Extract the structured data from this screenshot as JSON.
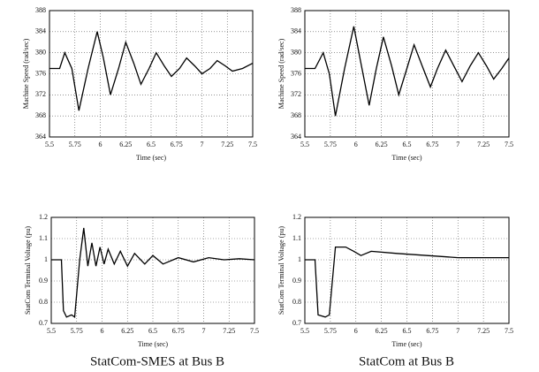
{
  "chart_data": [
    {
      "type": "line",
      "xlabel": "Time (sec)",
      "ylabel": "Machine Speed (rad/sec)",
      "color": "#000000",
      "grid": true,
      "x": [
        5.5,
        5.6,
        5.65,
        5.72,
        5.79,
        5.88,
        5.97,
        6.03,
        6.1,
        6.18,
        6.25,
        6.33,
        6.4,
        6.48,
        6.55,
        6.63,
        6.7,
        6.78,
        6.85,
        6.93,
        7.0,
        7.08,
        7.15,
        7.23,
        7.3,
        7.4,
        7.5
      ],
      "values": [
        377,
        377,
        380,
        377,
        369,
        377,
        384,
        379,
        372,
        377,
        382,
        378,
        374,
        377,
        380,
        377.5,
        375.5,
        377,
        379,
        377.5,
        376,
        377,
        378.5,
        377.5,
        376.5,
        377,
        378
      ],
      "xlim": [
        5.5,
        7.5
      ],
      "xticks": [
        5.5,
        5.75,
        6,
        6.25,
        6.5,
        6.75,
        7,
        7.25,
        7.5
      ],
      "ylim": [
        364,
        388
      ],
      "yticks": [
        364,
        368,
        372,
        376,
        380,
        384,
        388
      ]
    },
    {
      "type": "line",
      "xlabel": "Time (sec)",
      "ylabel": "Machine Speed (rad/sec)",
      "color": "#000000",
      "grid": true,
      "x": [
        5.5,
        5.6,
        5.68,
        5.74,
        5.8,
        5.89,
        5.98,
        6.05,
        6.13,
        6.2,
        6.27,
        6.35,
        6.42,
        6.5,
        6.57,
        6.65,
        6.73,
        6.8,
        6.88,
        6.96,
        7.04,
        7.12,
        7.2,
        7.28,
        7.35,
        7.43,
        7.5
      ],
      "values": [
        377,
        377,
        380,
        376,
        368,
        377,
        385,
        378,
        370,
        377,
        383,
        377.5,
        372,
        377,
        381.5,
        377.5,
        373.5,
        377,
        380.5,
        377.5,
        374.5,
        377.5,
        380,
        377.5,
        375,
        377,
        379
      ],
      "xlim": [
        5.5,
        7.5
      ],
      "xticks": [
        5.5,
        5.75,
        6,
        6.25,
        6.5,
        6.75,
        7,
        7.25,
        7.5
      ],
      "ylim": [
        364,
        388
      ],
      "yticks": [
        364,
        368,
        372,
        376,
        380,
        384,
        388
      ]
    },
    {
      "type": "line",
      "xlabel": "Time (sec)",
      "ylabel": "StatCom Terminal Voltage (pu)",
      "color": "#000000",
      "grid": true,
      "x": [
        5.5,
        5.6,
        5.62,
        5.65,
        5.7,
        5.73,
        5.78,
        5.82,
        5.86,
        5.9,
        5.94,
        5.98,
        6.02,
        6.06,
        6.12,
        6.18,
        6.25,
        6.32,
        6.42,
        6.5,
        6.6,
        6.75,
        6.9,
        7.05,
        7.2,
        7.35,
        7.5
      ],
      "values": [
        1.0,
        1.0,
        0.76,
        0.73,
        0.74,
        0.73,
        1.0,
        1.15,
        0.97,
        1.08,
        0.97,
        1.06,
        0.98,
        1.05,
        0.98,
        1.04,
        0.97,
        1.03,
        0.98,
        1.02,
        0.98,
        1.01,
        0.99,
        1.01,
        1.0,
        1.005,
        1.0
      ],
      "xlim": [
        5.5,
        7.5
      ],
      "xticks": [
        5.5,
        5.75,
        6,
        6.25,
        6.5,
        6.75,
        7,
        7.25,
        7.5
      ],
      "ylim": [
        0.7,
        1.2
      ],
      "yticks": [
        0.7,
        0.8,
        0.9,
        1,
        1.1,
        1.2
      ]
    },
    {
      "type": "line",
      "xlabel": "Time (sec)",
      "ylabel": "StatCom Terminal Voltage (pu)",
      "color": "#000000",
      "grid": true,
      "x": [
        5.5,
        5.6,
        5.63,
        5.7,
        5.74,
        5.8,
        5.9,
        5.98,
        6.05,
        6.15,
        6.4,
        6.7,
        7.0,
        7.5
      ],
      "values": [
        1.0,
        1.0,
        0.74,
        0.73,
        0.74,
        1.06,
        1.06,
        1.04,
        1.02,
        1.04,
        1.03,
        1.02,
        1.01,
        1.01
      ],
      "xlim": [
        5.5,
        7.5
      ],
      "xticks": [
        5.5,
        5.75,
        6,
        6.25,
        6.5,
        6.75,
        7,
        7.25,
        7.5
      ],
      "ylim": [
        0.7,
        1.2
      ],
      "yticks": [
        0.7,
        0.8,
        0.9,
        1,
        1.1,
        1.2
      ]
    }
  ],
  "captions": [
    "StatCom-SMES at Bus B",
    "StatCom at Bus B"
  ]
}
